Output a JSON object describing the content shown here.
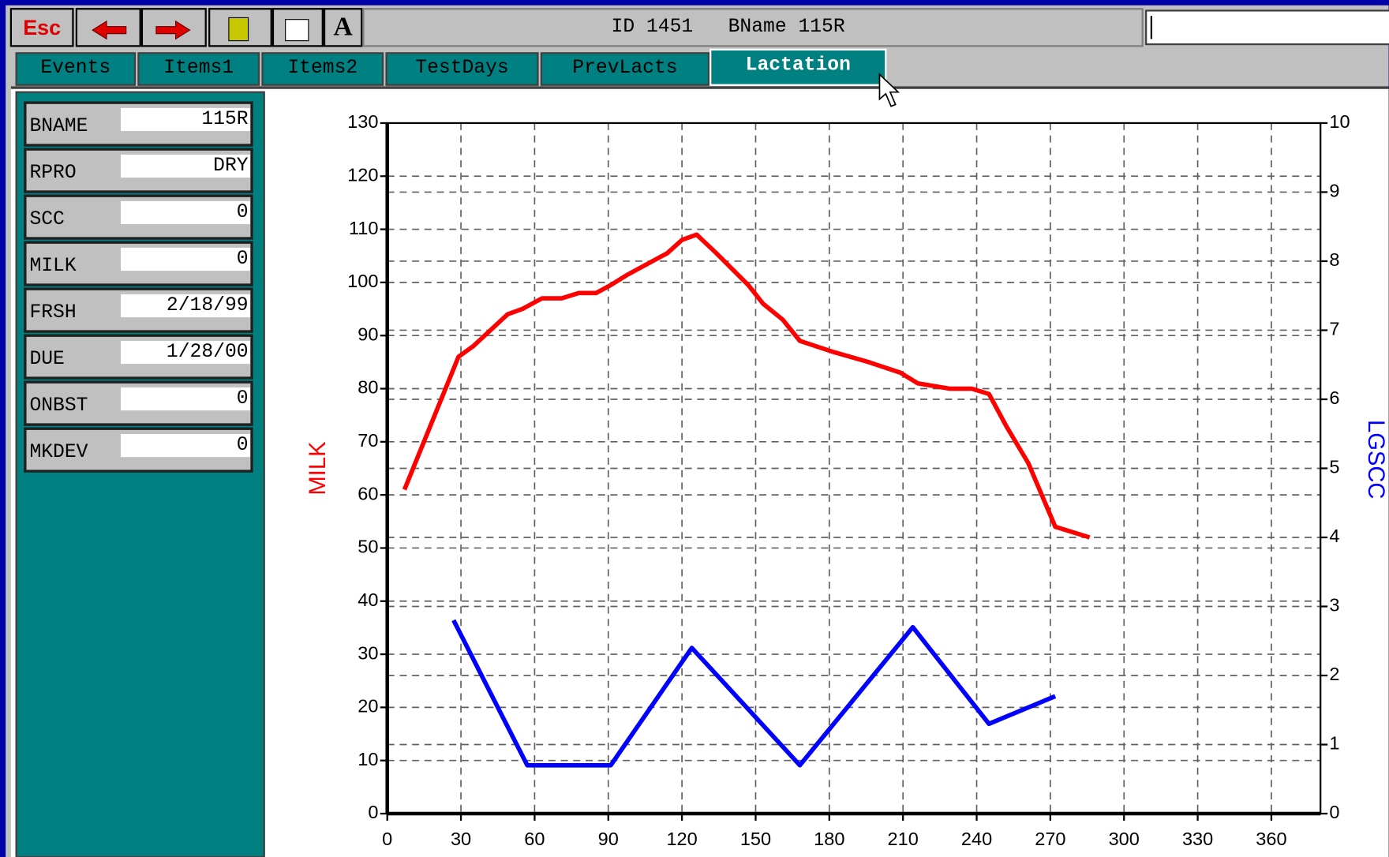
{
  "toolbar": {
    "esc": "Esc",
    "font_button": "A",
    "title": "ID 1451   BName 115R"
  },
  "tabs": [
    "Events",
    "Items1",
    "Items2",
    "TestDays",
    "PrevLacts",
    "Lactation"
  ],
  "fields": [
    {
      "label": "BNAME",
      "value": "115R"
    },
    {
      "label": "RPRO",
      "value": "DRY"
    },
    {
      "label": "SCC",
      "value": "0"
    },
    {
      "label": "MILK",
      "value": "0"
    },
    {
      "label": "FRSH",
      "value": "2/18/99"
    },
    {
      "label": "DUE",
      "value": "1/28/00"
    },
    {
      "label": "ONBST",
      "value": "0"
    },
    {
      "label": "MKDEV",
      "value": "0"
    }
  ],
  "chart_data": {
    "type": "line",
    "ylabel": "MILK",
    "y2label": "LGSCC",
    "xlim": [
      0,
      380
    ],
    "xticks": [
      0,
      30,
      60,
      90,
      120,
      150,
      180,
      210,
      240,
      270,
      300,
      330,
      360
    ],
    "ylim": [
      0,
      130
    ],
    "yticks": [
      0,
      10,
      20,
      30,
      40,
      50,
      60,
      70,
      80,
      90,
      100,
      110,
      120,
      130
    ],
    "y2lim": [
      0,
      10
    ],
    "y2ticks": [
      0,
      1,
      2,
      3,
      4,
      5,
      6,
      7,
      8,
      9,
      10
    ],
    "grid": true,
    "series": [
      {
        "name": "MILK",
        "color": "#ff0000",
        "x": [
          7,
          29,
          35,
          49,
          55,
          63,
          71,
          78,
          85,
          91,
          98,
          108,
          114,
          120,
          126,
          134,
          147,
          153,
          161,
          168,
          181,
          196,
          209,
          216,
          229,
          238,
          245,
          252,
          261,
          272,
          286
        ],
        "values": [
          61,
          86,
          88,
          94,
          95,
          97,
          97,
          98,
          98,
          99.5,
          101.5,
          104,
          105.5,
          108,
          109,
          105.5,
          99.5,
          96,
          93,
          89,
          87,
          85,
          83,
          81,
          80,
          80,
          79,
          73,
          66,
          54,
          52
        ]
      },
      {
        "name": "LGSCC",
        "color": "#0000ff",
        "axis": "y2",
        "x": [
          27,
          57,
          91,
          124,
          168,
          214,
          245,
          272
        ],
        "values": [
          2.8,
          0.7,
          0.7,
          2.4,
          0.7,
          2.7,
          1.3,
          1.7
        ]
      }
    ]
  }
}
